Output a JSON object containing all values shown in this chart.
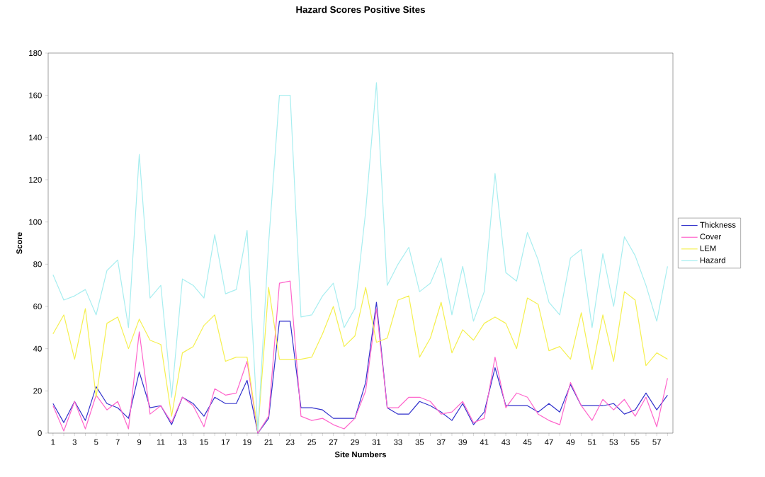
{
  "chart_data": {
    "type": "line",
    "title": "Hazard Scores Positive Sites",
    "xlabel": "Site Numbers",
    "ylabel": "Score",
    "categories": [
      "1",
      null,
      "3",
      null,
      "5",
      null,
      "7",
      null,
      "9",
      null,
      "11",
      null,
      "13",
      null,
      "15",
      null,
      "17",
      null,
      "19",
      null,
      "21",
      null,
      "23",
      null,
      "25",
      null,
      "27",
      null,
      "29",
      null,
      "31",
      null,
      "33",
      null,
      "35",
      null,
      "37",
      null,
      "39",
      null,
      "41",
      null,
      "43",
      null,
      "45",
      null,
      "47",
      null,
      "49",
      null,
      "51",
      null,
      "53",
      null,
      "55",
      null,
      "57",
      null
    ],
    "series": [
      {
        "name": "Thickness",
        "color": "#3333cc",
        "values": [
          14,
          5,
          15,
          6,
          22,
          14,
          12,
          7,
          29,
          12,
          13,
          4,
          17,
          14,
          8,
          17,
          14,
          14,
          25,
          0,
          7,
          53,
          53,
          12,
          12,
          11,
          7,
          7,
          7,
          24,
          62,
          12,
          9,
          9,
          15,
          13,
          10,
          6,
          14,
          4,
          10,
          31,
          13,
          13,
          13,
          10,
          14,
          10,
          23,
          13,
          13,
          13,
          14,
          9,
          11,
          19,
          11,
          18
        ]
      },
      {
        "name": "Cover",
        "color": "#ff66cc",
        "values": [
          13,
          1,
          15,
          2,
          18,
          11,
          15,
          2,
          48,
          9,
          13,
          5,
          17,
          13,
          3,
          21,
          18,
          19,
          34,
          0,
          8,
          71,
          72,
          8,
          6,
          7,
          4,
          2,
          7,
          20,
          59,
          12,
          12,
          17,
          17,
          15,
          9,
          10,
          15,
          5,
          7,
          36,
          12,
          19,
          17,
          9,
          6,
          4,
          24,
          13,
          6,
          16,
          11,
          16,
          8,
          17,
          3,
          26
        ]
      },
      {
        "name": "LEM",
        "color": "#f5f050",
        "values": [
          47,
          56,
          35,
          59,
          17,
          52,
          55,
          40,
          54,
          44,
          42,
          8,
          38,
          41,
          51,
          56,
          34,
          36,
          36,
          1,
          69,
          35,
          35,
          35,
          36,
          47,
          60,
          41,
          46,
          69,
          43,
          45,
          63,
          65,
          36,
          45,
          62,
          38,
          49,
          44,
          52,
          55,
          52,
          40,
          64,
          61,
          39,
          41,
          35,
          57,
          30,
          56,
          34,
          67,
          63,
          32,
          38,
          35
        ]
      },
      {
        "name": "Hazard",
        "color": "#a8eef0",
        "values": [
          75,
          63,
          65,
          68,
          56,
          77,
          82,
          50,
          132,
          64,
          70,
          17,
          73,
          70,
          64,
          94,
          66,
          68,
          96,
          1,
          90,
          160,
          160,
          55,
          56,
          65,
          71,
          50,
          59,
          105,
          166,
          70,
          80,
          88,
          67,
          71,
          83,
          56,
          79,
          53,
          67,
          123,
          76,
          72,
          95,
          82,
          62,
          56,
          83,
          87,
          50,
          85,
          60,
          93,
          84,
          70,
          53,
          79
        ]
      }
    ],
    "ylim": [
      0,
      180
    ],
    "yticks": [
      0,
      20,
      40,
      60,
      80,
      100,
      120,
      140,
      160,
      180
    ],
    "grid": false,
    "legend": "right"
  }
}
